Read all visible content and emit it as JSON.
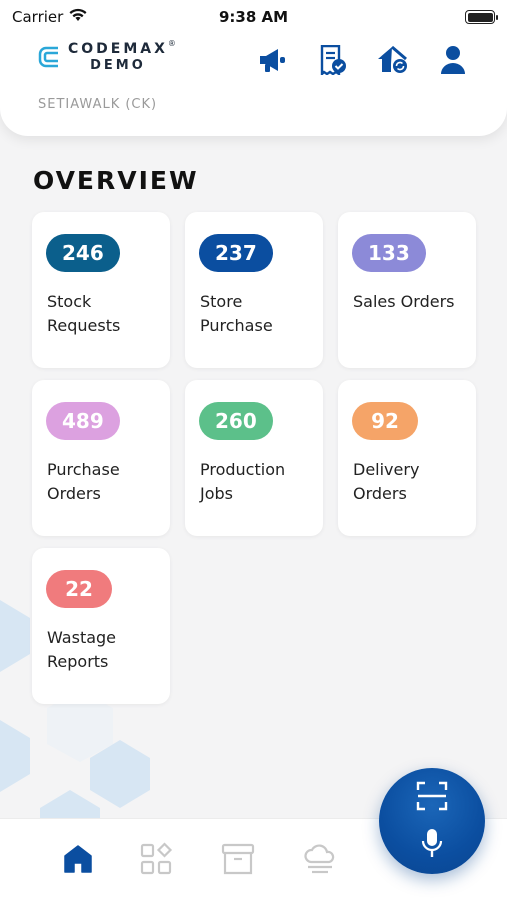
{
  "status_bar": {
    "carrier": "Carrier",
    "time": "9:38 AM"
  },
  "header": {
    "logo_line1": "CODEMAX",
    "logo_line2": "DEMO",
    "logo_reg": "®",
    "location": "SETIAWALK (CK)",
    "icons": [
      "megaphone-icon",
      "receipt-check-icon",
      "home-sync-icon",
      "user-icon"
    ]
  },
  "overview": {
    "title": "OVERVIEW",
    "cards": [
      {
        "count": "246",
        "label": "Stock Requests",
        "color": "#0b5f8c"
      },
      {
        "count": "237",
        "label": "Store Purchase",
        "color": "#0b4ea0"
      },
      {
        "count": "133",
        "label": "Sales Orders",
        "color": "#8c8ad8"
      },
      {
        "count": "489",
        "label": "Purchase Orders",
        "color": "#dca1e0"
      },
      {
        "count": "260",
        "label": "Production Jobs",
        "color": "#5cc08a"
      },
      {
        "count": "92",
        "label": "Delivery Orders",
        "color": "#f5a468"
      },
      {
        "count": "22",
        "label": "Wastage Reports",
        "color": "#f07b7d"
      }
    ]
  },
  "fab": {
    "icons": [
      "scan-icon",
      "microphone-icon"
    ]
  },
  "bottom_nav": {
    "items": [
      "home-icon",
      "apps-icon",
      "archive-icon",
      "cloud-icon"
    ],
    "active_color": "#0b4ea0",
    "inactive_color": "#c8c8c8"
  },
  "colors": {
    "brand": "#0b4ea0",
    "background": "#f4f4f5"
  }
}
